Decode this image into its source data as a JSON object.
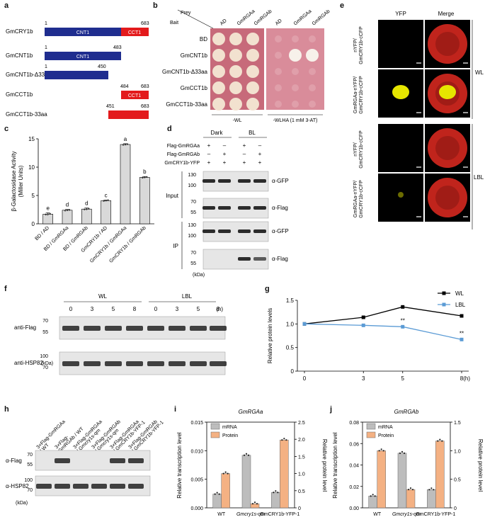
{
  "panel_labels": {
    "a": "a",
    "b": "b",
    "c": "c",
    "d": "d",
    "e": "e",
    "f": "f",
    "g": "g",
    "h": "h",
    "i": "i",
    "j": "j"
  },
  "panel_a": {
    "constructs": [
      {
        "name": "GmCRY1b",
        "start": "1",
        "end": "683",
        "domains": [
          "CNT1",
          "CCT1"
        ]
      },
      {
        "name": "GmCNT1b",
        "start": "1",
        "end": "483",
        "domains": [
          "CNT1"
        ]
      },
      {
        "name": "GmCNT1b-Δ33aa",
        "start": "1",
        "end": "450",
        "domains": []
      },
      {
        "name": "GmCCT1b",
        "start": "484",
        "end": "683",
        "domains": [
          "CCT1"
        ]
      },
      {
        "name": "GmCCT1b-33aa",
        "start": "451",
        "end": "683",
        "domains": []
      }
    ]
  },
  "panel_b": {
    "prey_label": "Prey",
    "bait_label": "Bait",
    "prey_cols": [
      "AD",
      "GmRGAa",
      "GmRGAb",
      "AD",
      "GmRGAa",
      "GmRGAb"
    ],
    "baits": [
      "BD",
      "GmCNT1b",
      "GmCNT1b-Δ33aa",
      "GmCCT1b",
      "GmCCT1b-33aa"
    ],
    "media": [
      "-WL",
      "-WLHA (1 mM 3-AT)"
    ],
    "growth_right": [
      [
        0,
        0,
        0
      ],
      [
        0,
        1,
        1
      ],
      [
        0,
        0,
        0
      ],
      [
        0,
        0,
        0
      ],
      [
        0,
        0,
        0
      ]
    ]
  },
  "panel_c": {
    "chart_data": {
      "type": "bar",
      "ylabel": "β-Galactosidase Activity",
      "ylabel2": "(Miller Units)",
      "ylim": [
        0,
        15
      ],
      "yticks": [
        "0",
        "5",
        "10",
        "15"
      ],
      "categories": [
        "BD / AD",
        "BD / GmRGAa",
        "BD / GmRGAb",
        "GmCRY1b / AD",
        "GmCRY1b / GmRGAa",
        "GmCRY1b / GmRGAb"
      ],
      "values": [
        1.7,
        2.4,
        2.6,
        4.1,
        14.0,
        8.2
      ],
      "errors": [
        0.25,
        0.15,
        0.2,
        0.1,
        0.15,
        0.15
      ],
      "letters": [
        "e",
        "d",
        "d",
        "c",
        "a",
        "b"
      ]
    }
  },
  "panel_d": {
    "conditions": [
      "Dark",
      "BL"
    ],
    "rows": [
      {
        "label": "Flag-GmRGAa",
        "signs": [
          "+",
          "–",
          "+",
          "–"
        ]
      },
      {
        "label": "Flag-GmRGAb",
        "signs": [
          "–",
          "+",
          "–",
          "+"
        ]
      },
      {
        "label": "GmCRY1b-YFP",
        "signs": [
          "+",
          "+",
          "+",
          "+"
        ]
      }
    ],
    "input_label": "Input",
    "ip_label": "IP",
    "blots": [
      {
        "ab": "α-GFP",
        "markers": [
          "130",
          "100"
        ]
      },
      {
        "ab": "α-Flag",
        "markers": [
          "70",
          "55"
        ]
      },
      {
        "ab": "α-GFP",
        "markers": [
          "130",
          "100"
        ]
      },
      {
        "ab": "α-Flag",
        "markers": [
          "70",
          "55"
        ]
      }
    ],
    "unit": "(kDa)"
  },
  "panel_e": {
    "col_headers": [
      "YFP",
      "Merge"
    ],
    "rows": [
      "nYFP/\nGmCRY1b-cCFP",
      "GmRGAa-nYFP/\nGmCRY1b-cCFP",
      "nYFP/\nGmCRY1b-cCFP",
      "GmRGAa-nYFP/\nGmCRY1b-cCFP"
    ],
    "groups": [
      "WL",
      "LBL"
    ]
  },
  "panel_f": {
    "groups": [
      "WL",
      "LBL"
    ],
    "times": [
      "0",
      "3",
      "5",
      "8",
      "0",
      "3",
      "5",
      "8"
    ],
    "unit_h": "(h)",
    "blots": [
      {
        "ab": "anti-Flag",
        "markers": [
          "70",
          "55"
        ]
      },
      {
        "ab": "anti-HSP82",
        "markers": [
          "100",
          "70"
        ]
      }
    ],
    "kda": "(kDa)"
  },
  "panel_g": {
    "chart_data": {
      "type": "line",
      "ylabel": "Relative protein levels",
      "x": [
        0,
        3,
        5,
        8
      ],
      "xticks": [
        "0",
        "3",
        "5",
        "8"
      ],
      "xunit": "(h)",
      "ylim": [
        0,
        1.5
      ],
      "yticks": [
        "0",
        "0.5",
        "1.0",
        "1.5"
      ],
      "series": [
        {
          "name": "WL",
          "values": [
            1.0,
            1.14,
            1.36,
            1.17
          ],
          "color": "#000000"
        },
        {
          "name": "LBL",
          "values": [
            1.0,
            0.97,
            0.94,
            0.67
          ],
          "color": "#5b9bd5"
        }
      ],
      "annotations": [
        "**",
        "**",
        "**"
      ]
    }
  },
  "panel_h": {
    "lanes": [
      "3×Flag-GmRGAa\n/ WT",
      "3×Flag-\nGmRGAb / WT",
      "3×Flag-GmRGAa\n/ Gmcry1s-qm",
      "3×Flag-GmRGAb\n/ Gmcry1s-qm",
      "3×Flag-GmRGAa\n/ GmCRY1b-YFP-1",
      "3×Flag-GmRGAb\n/ GmCRY1b-YFP-1"
    ],
    "blots": [
      {
        "ab": "α-Flag",
        "markers": [
          "70",
          "55"
        ]
      },
      {
        "ab": "α-HSP82",
        "markers": [
          "100",
          "70"
        ]
      }
    ],
    "kda": "(kDa)"
  },
  "panel_i": {
    "chart_data": {
      "type": "bar",
      "title": "GmRGAa",
      "categories": [
        "WT",
        "Gmcry1s-qm",
        "GmCRY1b-YFP-1"
      ],
      "ylabel": "Relative transcription level",
      "ylabel2": "Relative protein level",
      "ylim": [
        0,
        0.015
      ],
      "yticks": [
        "0.000",
        "0.005",
        "0.010",
        "0.015"
      ],
      "y2lim": [
        0,
        2.5
      ],
      "y2ticks": [
        "0",
        "0.5",
        "1.0",
        "1.5",
        "2.0",
        "2.5"
      ],
      "series": [
        {
          "name": "mRNA",
          "values": [
            0.0024,
            0.0092,
            0.0027
          ],
          "axis": "left",
          "color": "#bdbdbd"
        },
        {
          "name": "Protein",
          "values": [
            1.0,
            0.12,
            1.98
          ],
          "axis": "right",
          "color": "#f4b183"
        }
      ]
    }
  },
  "panel_j": {
    "chart_data": {
      "type": "bar",
      "title": "GmRGAb",
      "categories": [
        "WT",
        "Gmcry1s-qm",
        "GmCRY1b-YFP-1"
      ],
      "ylabel": "Relative transcription level",
      "ylabel2": "Relative protein level",
      "ylim": [
        0,
        0.08
      ],
      "yticks": [
        "0.00",
        "0.02",
        "0.04",
        "0.06",
        "0.08"
      ],
      "y2lim": [
        0,
        1.5
      ],
      "y2ticks": [
        "0",
        "0.5",
        "1.0",
        "1.5"
      ],
      "series": [
        {
          "name": "mRNA",
          "values": [
            0.011,
            0.051,
            0.017
          ],
          "axis": "left",
          "color": "#bdbdbd"
        },
        {
          "name": "Protein",
          "values": [
            1.0,
            0.32,
            1.17
          ],
          "axis": "right",
          "color": "#f4b183"
        }
      ]
    }
  },
  "colors": {
    "blue": "#1f2d8f",
    "red": "#e31a1c",
    "plate": "#c76a7a",
    "wl": "#000000",
    "lbl": "#5b9bd5",
    "mrna": "#bdbdbd",
    "protein": "#f4b183"
  }
}
